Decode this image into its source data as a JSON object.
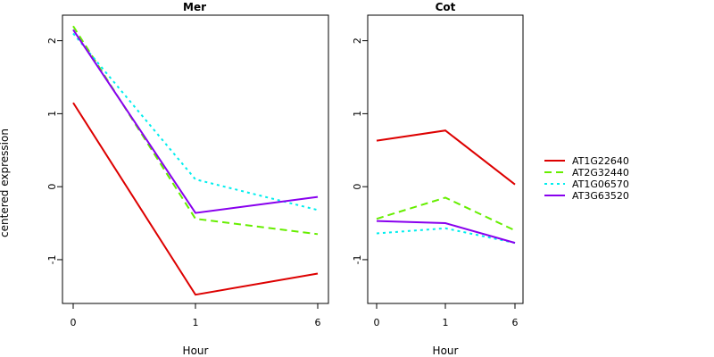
{
  "chart_data": {
    "type": "line",
    "ylabel": "centered expression",
    "xlabel": "Hour",
    "x": [
      "0",
      "1",
      "6"
    ],
    "ylim": [
      -1.6,
      2.35
    ],
    "yticks": [
      "-1",
      "0",
      "1",
      "2"
    ],
    "series_styles": [
      {
        "name": "AT1G22640",
        "color": "#dd0000",
        "dash": "solid"
      },
      {
        "name": "AT2G32440",
        "color": "#66ee00",
        "dash": "dashed"
      },
      {
        "name": "AT1G06570",
        "color": "#00eeee",
        "dash": "dotted"
      },
      {
        "name": "AT3G63520",
        "color": "#8800ee",
        "dash": "solid"
      }
    ],
    "panels": [
      {
        "title": "Mer",
        "series": [
          {
            "name": "AT1G22640",
            "values": [
              1.15,
              -1.48,
              -1.19
            ]
          },
          {
            "name": "AT2G32440",
            "values": [
              2.2,
              -0.44,
              -0.65
            ]
          },
          {
            "name": "AT1G06570",
            "values": [
              2.1,
              0.1,
              -0.32
            ]
          },
          {
            "name": "AT3G63520",
            "values": [
              2.15,
              -0.36,
              -0.14
            ]
          }
        ]
      },
      {
        "title": "Cot",
        "series": [
          {
            "name": "AT1G22640",
            "values": [
              0.63,
              0.77,
              0.03
            ]
          },
          {
            "name": "AT2G32440",
            "values": [
              -0.44,
              -0.15,
              -0.6
            ]
          },
          {
            "name": "AT1G06570",
            "values": [
              -0.64,
              -0.57,
              -0.77
            ]
          },
          {
            "name": "AT3G63520",
            "values": [
              -0.47,
              -0.5,
              -0.77
            ]
          }
        ]
      }
    ],
    "legend": {
      "position": "right",
      "entries": [
        "AT1G22640",
        "AT2G32440",
        "AT1G06570",
        "AT3G63520"
      ]
    }
  }
}
